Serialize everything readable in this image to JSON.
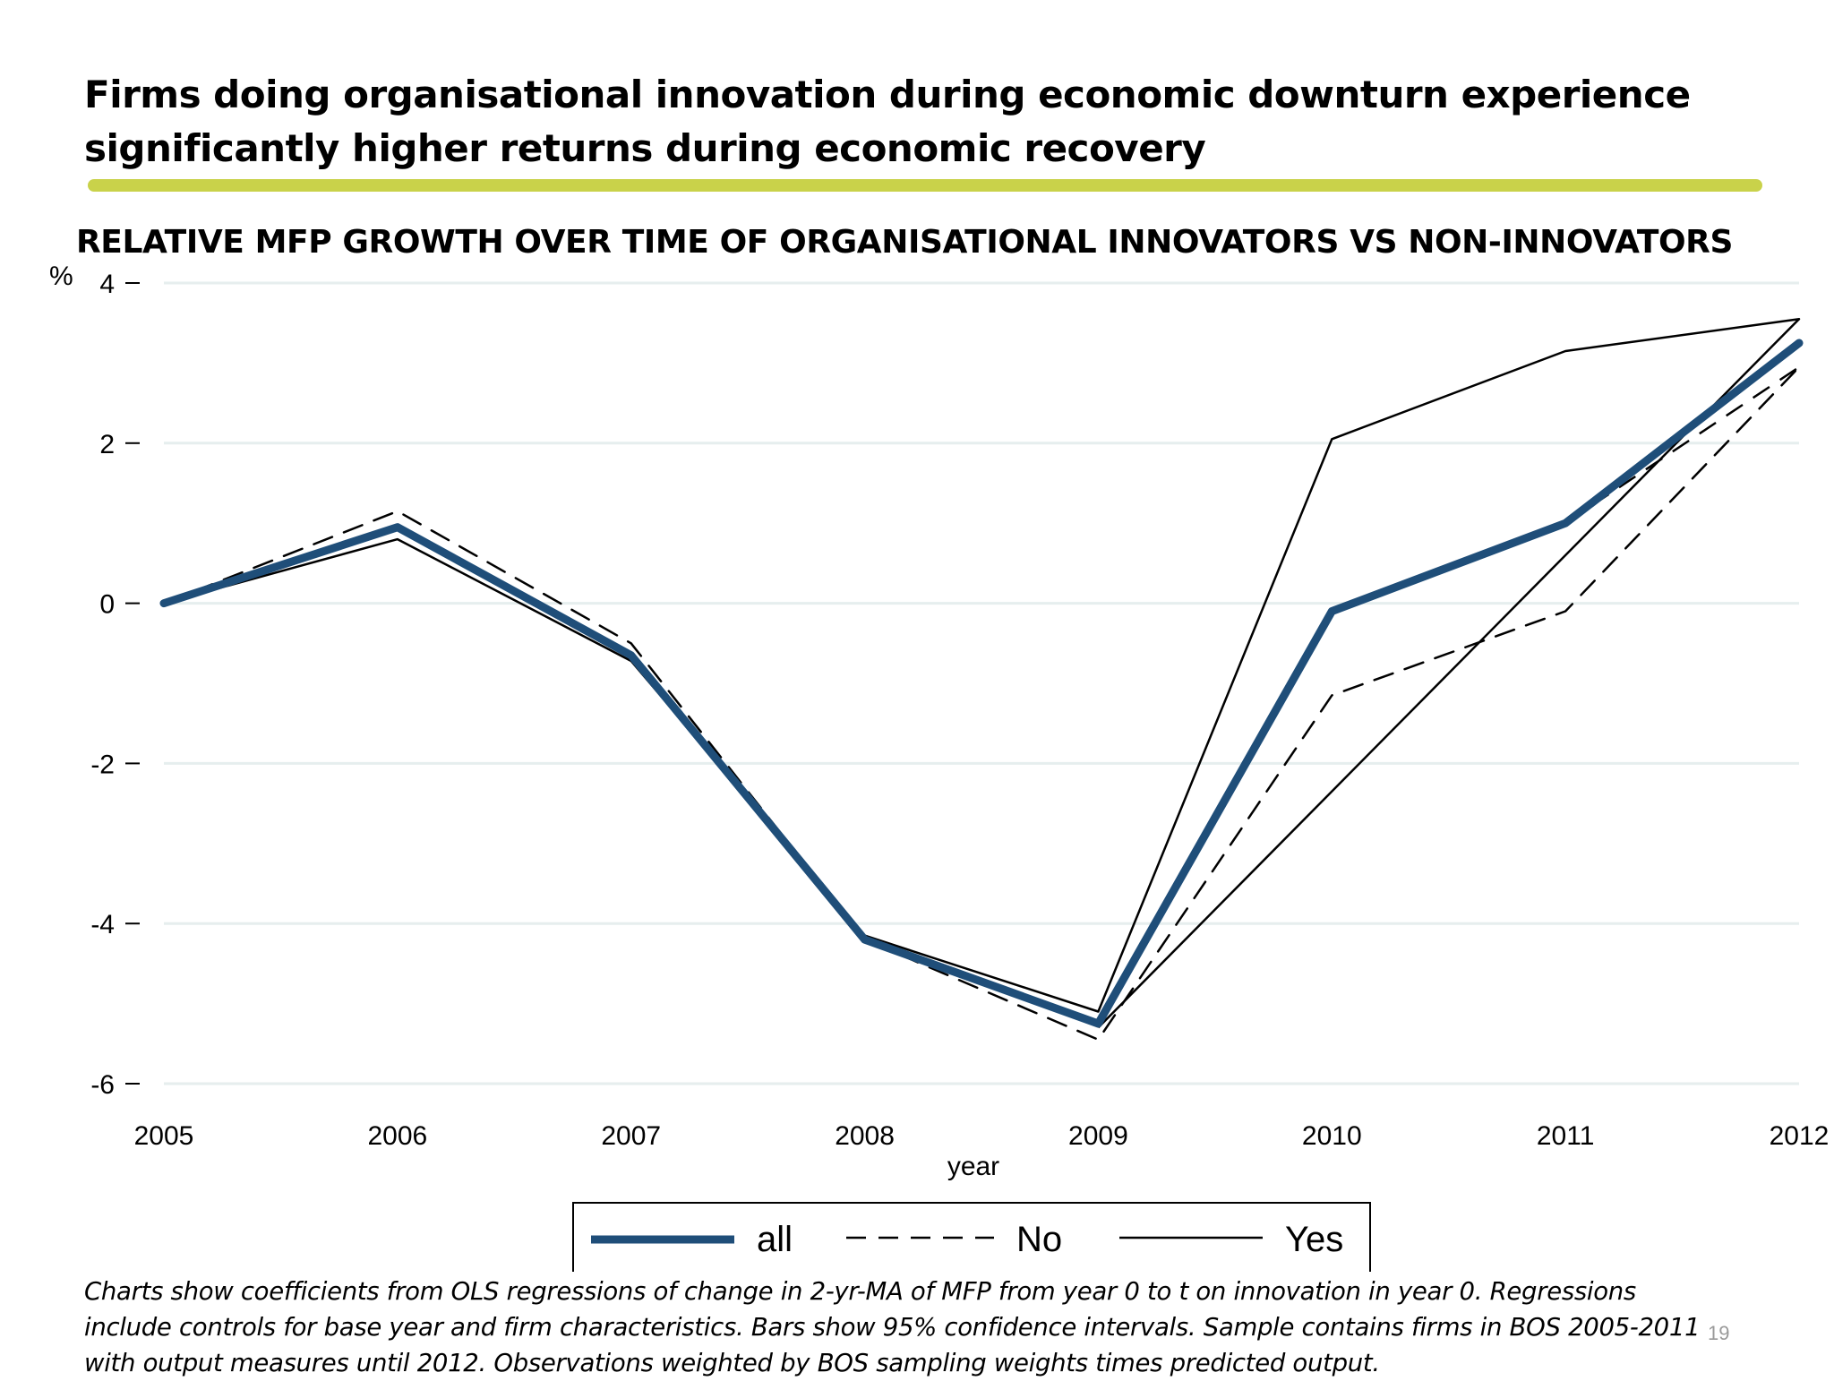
{
  "slide": {
    "title_line1": "Firms doing organisational innovation during economic downturn experience",
    "title_line2": "significantly higher returns during economic recovery",
    "footnote_line1": "Charts show coefficients from OLS regressions of change in 2-yr-MA of MFP from year 0 to t on innovation in year 0. Regressions",
    "footnote_line2": "include controls for base year and firm characteristics. Bars show 95% confidence intervals. Sample contains firms in BOS 2005-2011",
    "footnote_line3": "with output measures until 2012. Observations weighted by BOS sampling weights times predicted output.",
    "page_number": "19",
    "accent_color": "#c9d24a"
  },
  "chart_data": {
    "type": "line",
    "title": "RELATIVE MFP GROWTH OVER TIME OF ORGANISATIONAL INNOVATORS VS NON-INNOVATORS",
    "xlabel": "year",
    "ylabel": "%",
    "x": [
      2005,
      2006,
      2007,
      2008,
      2009,
      2010,
      2011,
      2012
    ],
    "xlim": [
      2005,
      2012
    ],
    "ylim": [
      -6,
      4
    ],
    "yticks": [
      4,
      2,
      0,
      -2,
      -4,
      -6
    ],
    "ytick_labels": [
      "4",
      "2",
      "0",
      "-2",
      "-4",
      "-6"
    ],
    "grid": true,
    "legend_placement": "bottom-center",
    "series": [
      {
        "name": "all",
        "style": "thick-solid",
        "color": "#1f4e79",
        "values": [
          0,
          0.95,
          -0.65,
          -4.2,
          -5.25,
          -0.1,
          1.0,
          3.25
        ]
      },
      {
        "name": "No",
        "style": "dashed",
        "color": "#000000",
        "values": [
          0,
          1.15,
          -0.5,
          -4.2,
          -5.45,
          -1.15,
          -0.1,
          2.95
        ]
      },
      {
        "name": "Yes",
        "style": "thin-solid",
        "color": "#000000",
        "values": [
          0,
          0.8,
          -0.72,
          -4.15,
          -5.1,
          2.05,
          3.15,
          3.55
        ]
      }
    ],
    "extra_segments": [
      {
        "series": "Yes",
        "x": [
          2009,
          2012
        ],
        "values": [
          -5.3,
          3.55
        ]
      },
      {
        "series": "No",
        "x": [
          2011,
          2012
        ],
        "values": [
          1.0,
          2.95
        ]
      }
    ]
  }
}
